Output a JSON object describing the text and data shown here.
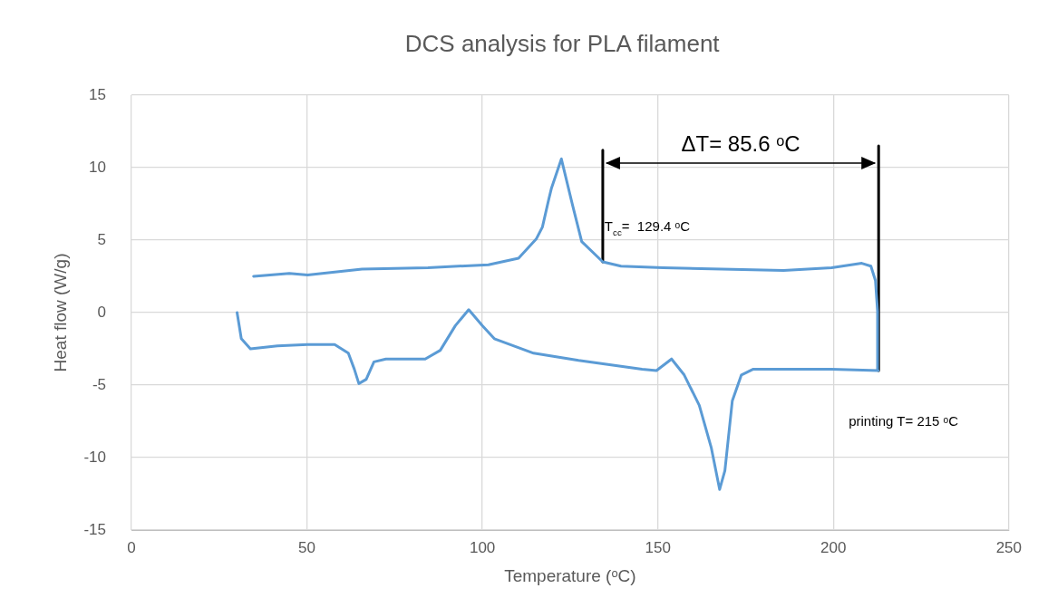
{
  "chart_data": {
    "type": "line",
    "title": "DCS analysis for PLA filament",
    "xlabel": "Temperature (ᵒC)",
    "ylabel": "Heat flow (W/g)",
    "xlim": [
      0,
      250
    ],
    "xticks": [
      0,
      50,
      100,
      150,
      200,
      250
    ],
    "ylim": [
      -15,
      15
    ],
    "yticks": [
      -15,
      -10,
      -5,
      0,
      5,
      10,
      15
    ],
    "grid": true,
    "legend": false,
    "marker": "none",
    "line_style": "solid",
    "series": [
      {
        "color": "#5b9bd5",
        "x": [
          30.1,
          31.3,
          33.9,
          41.6,
          50.2,
          57.9,
          61.8,
          63.5,
          64.8,
          66.9,
          69.1,
          72.5,
          83.7,
          88,
          92.3,
          96.1,
          100,
          103.4,
          114.6,
          127.4,
          145.5,
          149.6,
          153.9,
          157.5,
          161.8,
          165.2,
          167.6,
          169.1,
          171.2,
          173.8,
          177.2,
          199.5,
          212.8,
          212.6,
          212,
          210.7,
          208.1,
          199.5,
          185.8,
          151.5,
          139.5,
          134.3,
          128.3,
          125.7,
          122.5,
          119.7,
          118.9,
          117.1,
          115.4,
          110.3,
          101.7,
          84.5,
          65.7,
          50.2,
          45,
          34.8
        ],
        "values": [
          0,
          -1.8,
          -2.5,
          -2.3,
          -2.2,
          -2.2,
          -2.8,
          -3.9,
          -4.9,
          -4.6,
          -3.4,
          -3.2,
          -3.2,
          -2.6,
          -0.9,
          0.2,
          -0.9,
          -1.8,
          -2.8,
          -3.3,
          -3.9,
          -4,
          -3.2,
          -4.3,
          -6.4,
          -9.3,
          -12.2,
          -10.9,
          -6.1,
          -4.3,
          -3.9,
          -3.9,
          -4,
          0.1,
          2.2,
          3.2,
          3.4,
          3.1,
          2.9,
          3.1,
          3.2,
          3.5,
          4.9,
          7.4,
          10.6,
          8.6,
          7.8,
          5.9,
          5.1,
          3.75,
          3.3,
          3.1,
          3,
          2.6,
          2.7,
          2.5
        ]
      },
      {
        "color": "#000000",
        "x": [
          134.3,
          134.3
        ],
        "values": [
          3.5,
          11.2
        ]
      },
      {
        "color": "#000000",
        "x": [
          212.9,
          212.9
        ],
        "values": [
          -4,
          11.5
        ]
      }
    ],
    "annotations": [
      "ΔT= 85.6 ᵒC",
      {
        "text": "T$_{cc}$=  129.4 ᵒC",
        "x": 134.8,
        "y": 5.9
      },
      "printing T= 215 ᵒC"
    ]
  }
}
